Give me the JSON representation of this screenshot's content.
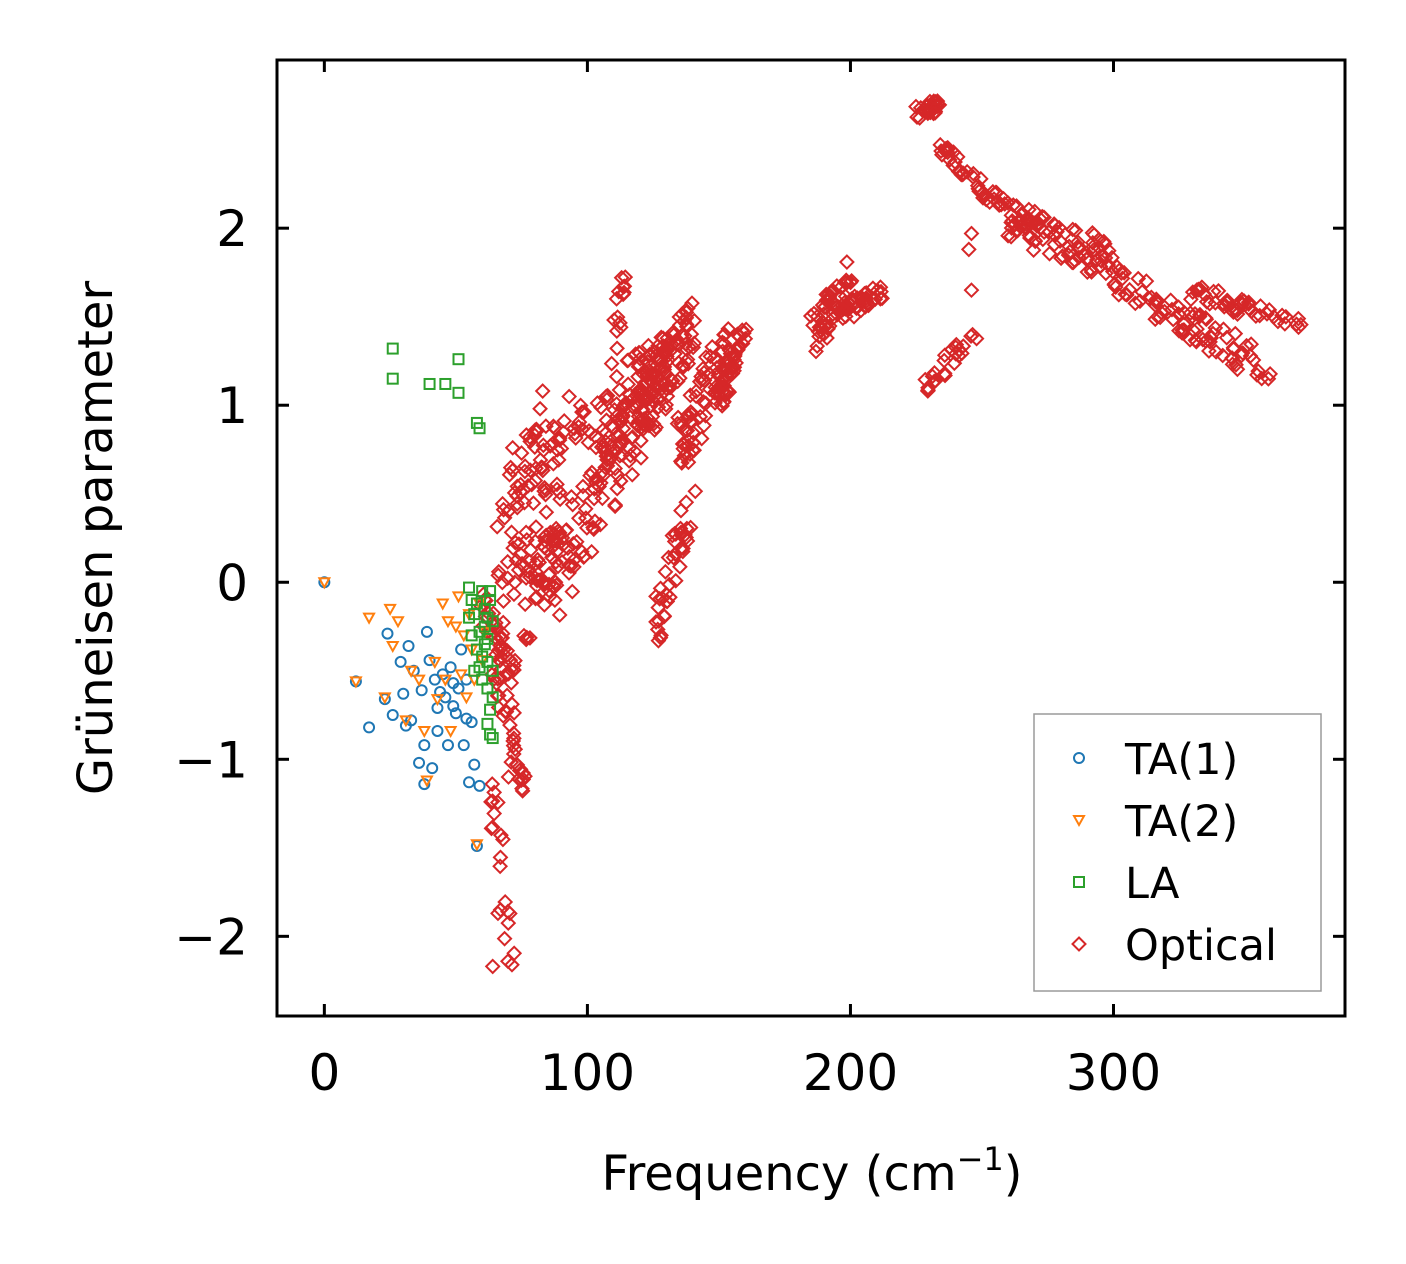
{
  "chart_data": {
    "type": "scatter",
    "title": "",
    "xlabel": "Frequency (cm",
    "xlabel_sup": "−1",
    "xlabel_close": ")",
    "ylabel": "Grüneisen parameter",
    "xlim": [
      -18,
      388
    ],
    "ylim": [
      -2.45,
      2.95
    ],
    "xticks": [
      0,
      100,
      200,
      300
    ],
    "xtick_labels": [
      "0",
      "100",
      "200",
      "300"
    ],
    "yticks": [
      -2,
      -1,
      0,
      1,
      2
    ],
    "ytick_labels": [
      "−2",
      "−1",
      "0",
      "1",
      "2"
    ],
    "legend_position": "lower-right",
    "series": [
      {
        "name": "TA(1)",
        "marker": "circle",
        "color": "#1f77b4",
        "x": [
          0,
          12,
          17,
          23,
          24,
          26,
          29,
          30,
          31,
          32,
          33,
          34,
          36,
          37,
          38,
          38,
          39,
          40,
          41,
          42,
          43,
          43,
          44,
          45,
          46,
          47,
          48,
          49,
          49,
          50,
          51,
          52,
          53,
          54,
          54,
          55,
          56,
          57,
          58,
          59
        ],
        "y": [
          0,
          -0.56,
          -0.82,
          -0.66,
          -0.29,
          -0.75,
          -0.45,
          -0.63,
          -0.81,
          -0.36,
          -0.78,
          -0.5,
          -1.02,
          -0.61,
          -0.92,
          -1.14,
          -0.28,
          -0.44,
          -1.05,
          -0.55,
          -0.71,
          -0.84,
          -0.62,
          -0.52,
          -0.65,
          -0.92,
          -0.48,
          -0.57,
          -0.7,
          -0.74,
          -0.6,
          -0.38,
          -0.92,
          -0.55,
          -0.77,
          -1.13,
          -0.79,
          -1.03,
          -1.49,
          -1.15
        ]
      },
      {
        "name": "TA(2)",
        "marker": "triangle_down",
        "color": "#ff7f0e",
        "x": [
          0,
          12,
          17,
          23,
          25,
          26,
          28,
          31,
          33,
          36,
          38,
          39,
          42,
          43,
          45,
          46,
          47,
          48,
          50,
          51,
          52,
          53,
          54,
          55,
          56,
          57,
          58,
          59,
          60,
          61
        ],
        "y": [
          0,
          -0.56,
          -0.2,
          -0.65,
          -0.15,
          -0.36,
          -0.22,
          -0.78,
          -0.5,
          -0.55,
          -0.84,
          -1.12,
          -0.45,
          -0.66,
          -0.12,
          -0.55,
          -0.22,
          -0.84,
          -0.25,
          -0.08,
          -0.52,
          -0.3,
          -0.65,
          -0.18,
          -0.38,
          -0.55,
          -1.48,
          -0.12,
          -0.44,
          -0.28
        ]
      },
      {
        "name": "LA",
        "marker": "square",
        "color": "#2ca02c",
        "x": [
          26,
          26,
          40,
          46,
          51,
          51,
          55,
          56,
          57,
          58,
          59,
          60,
          61,
          62,
          63,
          64,
          64,
          62,
          61,
          60,
          59,
          58,
          57,
          56,
          55,
          62,
          63,
          64,
          62,
          63,
          60,
          61,
          63,
          64,
          58,
          59,
          62
        ],
        "y": [
          1.32,
          1.15,
          1.12,
          1.12,
          1.07,
          1.26,
          -0.03,
          -0.1,
          -0.18,
          0.9,
          0.87,
          -0.05,
          -0.25,
          -0.32,
          -0.05,
          -0.5,
          -0.22,
          -0.6,
          -0.15,
          -0.42,
          -0.28,
          -0.38,
          -0.5,
          -0.3,
          -0.2,
          -0.8,
          -0.86,
          -0.65,
          -0.45,
          -0.1,
          -0.55,
          -0.35,
          -0.72,
          -0.88,
          -0.12,
          -0.48,
          -0.2
        ]
      },
      {
        "name": "Optical",
        "marker": "diamond",
        "color": "#d62728",
        "bands": [
          {
            "x0": 60,
            "x1": 72,
            "y0": -0.1,
            "y1": -0.55,
            "jitter": 0.12,
            "n": 40
          },
          {
            "x0": 64,
            "x1": 76,
            "y0": -0.4,
            "y1": -1.2,
            "jitter": 0.15,
            "n": 35
          },
          {
            "x0": 64,
            "x1": 72,
            "y0": -1.2,
            "y1": -2.2,
            "jitter": 0.08,
            "n": 20
          },
          {
            "x0": 66,
            "x1": 90,
            "y0": 0.1,
            "y1": 0.6,
            "jitter": 0.3,
            "n": 60
          },
          {
            "x0": 70,
            "x1": 100,
            "y0": 0.6,
            "y1": 1.0,
            "jitter": 0.15,
            "n": 45
          },
          {
            "x0": 76,
            "x1": 92,
            "y0": -0.2,
            "y1": 0.3,
            "jitter": 0.2,
            "n": 40
          },
          {
            "x0": 86,
            "x1": 120,
            "y0": 0.0,
            "y1": 0.9,
            "jitter": 0.25,
            "n": 70
          },
          {
            "x0": 100,
            "x1": 125,
            "y0": 0.7,
            "y1": 1.2,
            "jitter": 0.25,
            "n": 80
          },
          {
            "x0": 110,
            "x1": 113,
            "y0": 1.25,
            "y1": 1.7,
            "jitter": 0.05,
            "n": 14
          },
          {
            "x0": 118,
            "x1": 140,
            "y0": 0.9,
            "y1": 1.45,
            "jitter": 0.2,
            "n": 120
          },
          {
            "x0": 125,
            "x1": 140,
            "y0": -0.3,
            "y1": 0.5,
            "jitter": 0.15,
            "n": 40
          },
          {
            "x0": 135,
            "x1": 155,
            "y0": 0.8,
            "y1": 1.3,
            "jitter": 0.2,
            "n": 80
          },
          {
            "x0": 150,
            "x1": 160,
            "y0": 1.05,
            "y1": 1.45,
            "jitter": 0.1,
            "n": 40
          },
          {
            "x0": 186,
            "x1": 200,
            "y0": 1.4,
            "y1": 1.7,
            "jitter": 0.12,
            "n": 50
          },
          {
            "x0": 195,
            "x1": 212,
            "y0": 1.5,
            "y1": 1.65,
            "jitter": 0.06,
            "n": 40
          },
          {
            "x0": 228,
            "x1": 248,
            "y0": 1.1,
            "y1": 1.4,
            "jitter": 0.05,
            "n": 25
          },
          {
            "x0": 226,
            "x1": 234,
            "y0": 2.65,
            "y1": 2.7,
            "jitter": 0.04,
            "n": 25
          },
          {
            "x0": 234,
            "x1": 260,
            "y0": 2.45,
            "y1": 2.1,
            "jitter": 0.05,
            "n": 40
          },
          {
            "x0": 260,
            "x1": 300,
            "y0": 2.05,
            "y1": 1.8,
            "jitter": 0.12,
            "n": 90
          },
          {
            "x0": 300,
            "x1": 360,
            "y0": 1.7,
            "y1": 1.2,
            "jitter": 0.1,
            "n": 80
          },
          {
            "x0": 330,
            "x1": 372,
            "y0": 1.65,
            "y1": 1.45,
            "jitter": 0.05,
            "n": 45
          }
        ],
        "x": [
          113,
          128,
          127,
          246,
          246,
          245,
          83,
          82,
          80,
          66,
          67,
          70,
          72,
          64
        ],
        "y": [
          1.72,
          -0.3,
          -0.33,
          1.65,
          1.97,
          1.88,
          1.08,
          0.98,
          0.83,
          -1.87,
          -1.85,
          -1.1,
          -0.97,
          -2.17
        ]
      }
    ]
  }
}
